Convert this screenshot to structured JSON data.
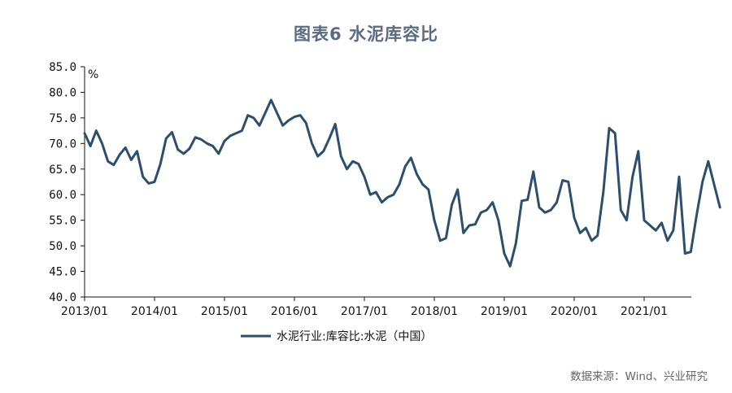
{
  "title": "图表6   水泥库容比",
  "source": "数据来源：Wind、兴业研究",
  "chart_data": {
    "type": "line",
    "title": "图表6   水泥库容比",
    "unit": "%",
    "xlabel": "",
    "ylabel": "",
    "ylim": [
      40,
      85
    ],
    "yticks": [
      "85.0",
      "80.0",
      "75.0",
      "70.0",
      "65.0",
      "60.0",
      "55.0",
      "50.0",
      "45.0",
      "40.0"
    ],
    "xticks": [
      "2013/01",
      "2014/01",
      "2015/01",
      "2016/01",
      "2017/01",
      "2018/01",
      "2019/01",
      "2020/01",
      "2021/01"
    ],
    "xlim": [
      "2013/01",
      "2021/09"
    ],
    "grid": false,
    "legend": "bottom",
    "series_color": "#2c4f6e",
    "series": [
      {
        "name": "水泥行业:库容比:水泥（中国）",
        "points": [
          [
            "2013/01",
            72.0
          ],
          [
            "2013/02",
            69.5
          ],
          [
            "2013/03",
            72.5
          ],
          [
            "2013/04",
            70.0
          ],
          [
            "2013/05",
            66.5
          ],
          [
            "2013/06",
            65.8
          ],
          [
            "2013/07",
            67.8
          ],
          [
            "2013/08",
            69.2
          ],
          [
            "2013/09",
            66.8
          ],
          [
            "2013/10",
            68.5
          ],
          [
            "2013/11",
            63.5
          ],
          [
            "2013/12",
            62.2
          ],
          [
            "2014/01",
            62.5
          ],
          [
            "2014/02",
            66.0
          ],
          [
            "2014/03",
            71.0
          ],
          [
            "2014/04",
            72.2
          ],
          [
            "2014/05",
            68.8
          ],
          [
            "2014/06",
            68.0
          ],
          [
            "2014/07",
            69.0
          ],
          [
            "2014/08",
            71.2
          ],
          [
            "2014/09",
            70.8
          ],
          [
            "2014/10",
            70.0
          ],
          [
            "2014/11",
            69.5
          ],
          [
            "2014/12",
            68.0
          ],
          [
            "2015/01",
            70.5
          ],
          [
            "2015/02",
            71.5
          ],
          [
            "2015/03",
            72.0
          ],
          [
            "2015/04",
            72.5
          ],
          [
            "2015/05",
            75.5
          ],
          [
            "2015/06",
            75.0
          ],
          [
            "2015/07",
            73.5
          ],
          [
            "2015/08",
            76.0
          ],
          [
            "2015/09",
            78.5
          ],
          [
            "2015/10",
            76.0
          ],
          [
            "2015/11",
            73.5
          ],
          [
            "2015/12",
            74.5
          ],
          [
            "2016/01",
            75.2
          ],
          [
            "2016/02",
            75.5
          ],
          [
            "2016/03",
            74.0
          ],
          [
            "2016/04",
            70.0
          ],
          [
            "2016/05",
            67.5
          ],
          [
            "2016/06",
            68.5
          ],
          [
            "2016/07",
            71.0
          ],
          [
            "2016/08",
            73.8
          ],
          [
            "2016/09",
            67.5
          ],
          [
            "2016/10",
            65.0
          ],
          [
            "2016/11",
            66.5
          ],
          [
            "2016/12",
            66.0
          ],
          [
            "2017/01",
            63.5
          ],
          [
            "2017/02",
            60.0
          ],
          [
            "2017/03",
            60.5
          ],
          [
            "2017/04",
            58.5
          ],
          [
            "2017/05",
            59.5
          ],
          [
            "2017/06",
            60.0
          ],
          [
            "2017/07",
            62.0
          ],
          [
            "2017/08",
            65.5
          ],
          [
            "2017/09",
            67.2
          ],
          [
            "2017/10",
            64.0
          ],
          [
            "2017/11",
            62.0
          ],
          [
            "2017/12",
            61.0
          ],
          [
            "2018/01",
            55.0
          ],
          [
            "2018/02",
            51.0
          ],
          [
            "2018/03",
            51.5
          ],
          [
            "2018/04",
            58.0
          ],
          [
            "2018/05",
            61.0
          ],
          [
            "2018/06",
            52.5
          ],
          [
            "2018/07",
            54.0
          ],
          [
            "2018/08",
            54.2
          ],
          [
            "2018/09",
            56.5
          ],
          [
            "2018/10",
            57.0
          ],
          [
            "2018/11",
            58.5
          ],
          [
            "2018/12",
            55.0
          ],
          [
            "2019/01",
            48.5
          ],
          [
            "2019/02",
            46.0
          ],
          [
            "2019/03",
            50.5
          ],
          [
            "2019/04",
            58.8
          ],
          [
            "2019/05",
            59.0
          ],
          [
            "2019/06",
            64.5
          ],
          [
            "2019/07",
            57.5
          ],
          [
            "2019/08",
            56.5
          ],
          [
            "2019/09",
            57.0
          ],
          [
            "2019/10",
            58.5
          ],
          [
            "2019/11",
            62.8
          ],
          [
            "2019/12",
            62.5
          ],
          [
            "2020/01",
            55.5
          ],
          [
            "2020/02",
            52.5
          ],
          [
            "2020/03",
            53.5
          ],
          [
            "2020/04",
            51.0
          ],
          [
            "2020/05",
            52.0
          ],
          [
            "2020/06",
            60.5
          ],
          [
            "2020/07",
            73.0
          ],
          [
            "2020/08",
            72.0
          ],
          [
            "2020/09",
            57.0
          ],
          [
            "2020/10",
            55.0
          ],
          [
            "2020/11",
            63.5
          ],
          [
            "2020/12",
            68.5
          ],
          [
            "2021/01",
            55.0
          ],
          [
            "2021/02",
            54.0
          ],
          [
            "2021/03",
            53.0
          ],
          [
            "2021/04",
            54.5
          ],
          [
            "2021/05",
            51.0
          ],
          [
            "2021/06",
            53.0
          ],
          [
            "2021/07",
            63.5
          ],
          [
            "2021/08",
            48.5
          ],
          [
            "2021/09",
            48.8
          ],
          [
            "2021/10",
            56.0
          ],
          [
            "2021/11",
            62.5
          ],
          [
            "2021/12",
            66.5
          ],
          [
            "2022/01",
            62.0
          ],
          [
            "2022/02",
            57.5
          ]
        ]
      }
    ]
  }
}
